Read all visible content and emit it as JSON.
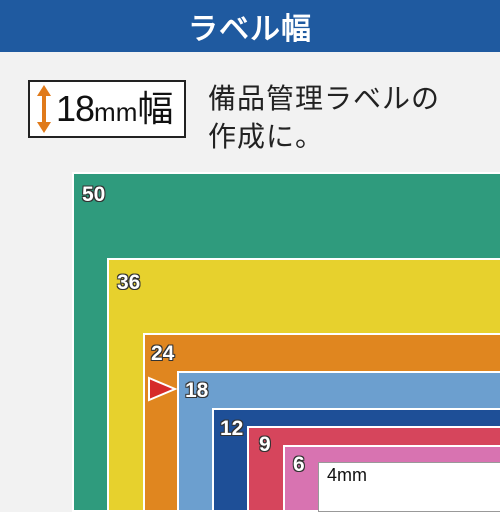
{
  "header": {
    "title": "ラベル幅"
  },
  "badge": {
    "number": "18",
    "unit": "mm",
    "suffix": "幅"
  },
  "description": {
    "line1": "備品管理ラベルの",
    "line2": "作成に。"
  },
  "tapes": [
    {
      "width": "50",
      "color": "#2f9b7d"
    },
    {
      "width": "36",
      "color": "#e7d12d"
    },
    {
      "width": "24",
      "color": "#e0861f"
    },
    {
      "width": "18",
      "color": "#6c9fcf"
    },
    {
      "width": "12",
      "color": "#1e4f97"
    },
    {
      "width": "9",
      "color": "#d6455c"
    },
    {
      "width": "6",
      "color": "#d873b1"
    },
    {
      "width": "4mm",
      "color": "#ffffff"
    }
  ],
  "colors": {
    "header": "#1f5aa0",
    "arrow": "#e07a1a",
    "pointer": "#d62a2a"
  }
}
